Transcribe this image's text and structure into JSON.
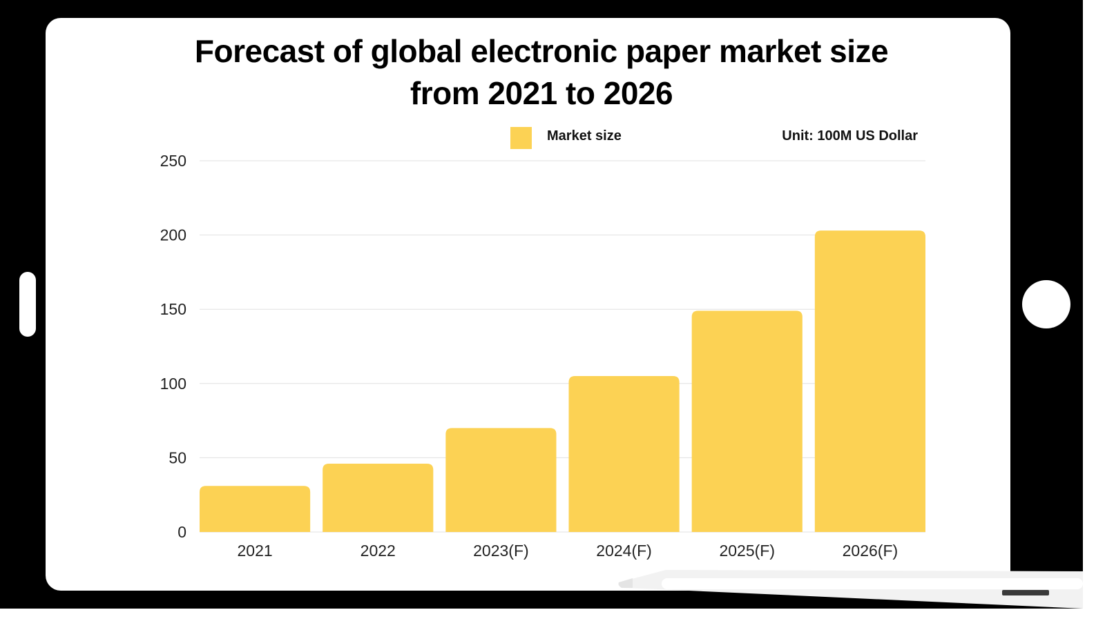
{
  "chart_data": {
    "type": "bar",
    "title": "Forecast of global electronic paper market size from 2021 to 2026",
    "title_lines": [
      "Forecast of global electronic paper market size",
      "from 2021 to 2026"
    ],
    "categories": [
      "2021",
      "2022",
      "2023(F)",
      "2024(F)",
      "2025(F)",
      "2026(F)"
    ],
    "series": [
      {
        "name": "Market size",
        "values": [
          31,
          46,
          70,
          105,
          149,
          203
        ],
        "color": "#fcd254"
      }
    ],
    "unit_note": "Unit: 100M US Dollar",
    "xlabel": "",
    "ylabel": "",
    "ylim": [
      0,
      250
    ],
    "yticks": [
      0,
      50,
      100,
      150,
      200,
      250
    ],
    "grid": true,
    "legend_position": "top-center"
  },
  "colors": {
    "bar": "#fcd254",
    "frame": "#000000",
    "screen": "#ffffff",
    "grid": "#e0e0e0"
  },
  "device": {
    "type": "tablet",
    "has_stylus": true
  }
}
